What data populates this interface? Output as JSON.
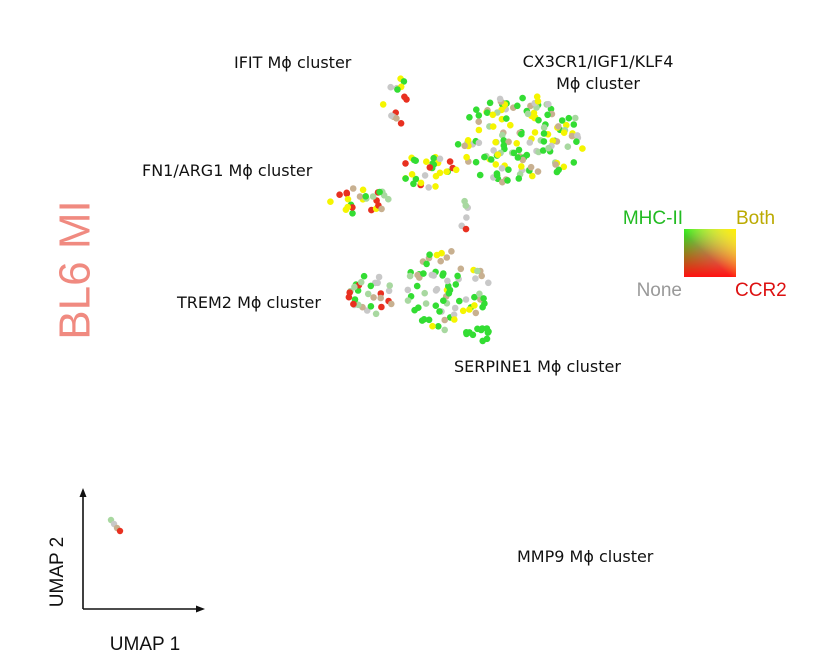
{
  "chart_data": {
    "type": "scatter",
    "side_label": "BL6 MI",
    "side_label_color": "#f08a80",
    "xlabel": "UMAP  1",
    "ylabel": "UMAP  2",
    "cluster_labels": [
      "IFIT Mϕ cluster",
      "CX3CR1/IGF1/KLF4",
      "Mϕ cluster",
      "FN1/ARG1 Mϕ cluster",
      "TREM2 Mϕ cluster",
      "SERPINE1 Mϕ cluster",
      "MMP9 Mϕ cluster"
    ],
    "legend": {
      "labels": [
        "MHC-II",
        "Both",
        "None",
        "CCR2"
      ],
      "colors": [
        "#22bb22",
        "#bbaa00",
        "#999999",
        "#dd1111"
      ]
    },
    "point_colors": {
      "green": "#33dd33",
      "yellow": "#f5f500",
      "grey": "#c8c8c8",
      "red": "#e83020",
      "tan": "#c8b090",
      "pale_green": "#a8d8a0"
    }
  }
}
